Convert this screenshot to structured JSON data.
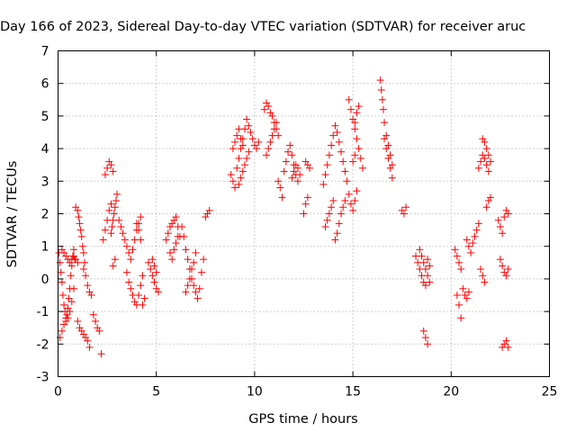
{
  "chart_data": {
    "type": "scatter",
    "title": "Day 166 of 2023, Sidereal Day-to-day VTEC variation (SDTVAR) for receiver aruc",
    "xlabel": "GPS time / hours",
    "ylabel": "SDTVAR / TECUs",
    "xlim": [
      0,
      25
    ],
    "ylim": [
      -3,
      7
    ],
    "xticks": [
      "0",
      "5",
      "10",
      "15",
      "20",
      "25"
    ],
    "yticks": [
      "-3",
      "-2",
      "-1",
      "0",
      "1",
      "2",
      "3",
      "4",
      "5",
      "6",
      "7"
    ],
    "grid": true,
    "marker": "+",
    "color": "#ff0000",
    "series": [
      {
        "name": "SDTVAR",
        "x": [
          0.05,
          0.1,
          0.15,
          0.2,
          0.25,
          0.3,
          0.35,
          0.4,
          0.45,
          0.5,
          0.55,
          0.6,
          0.65,
          0.7,
          0.75,
          0.8,
          0.85,
          0.1,
          0.2,
          0.3,
          0.4,
          0.5,
          0.6,
          0.7,
          0.8,
          0.2,
          0.3,
          0.4,
          0.5,
          0.6,
          0.7,
          0.8,
          0.9,
          1.0,
          0.9,
          1.0,
          1.05,
          1.1,
          1.15,
          1.2,
          1.25,
          1.3,
          1.35,
          1.0,
          1.1,
          1.2,
          1.3,
          1.4,
          1.5,
          1.6,
          1.3,
          1.4,
          1.5,
          1.6,
          1.7,
          1.8,
          1.9,
          2.0,
          2.1,
          2.2,
          2.3,
          2.4,
          2.5,
          2.6,
          2.7,
          2.8,
          2.9,
          2.4,
          2.5,
          2.6,
          2.7,
          2.8,
          2.7,
          2.75,
          2.8,
          2.85,
          2.9,
          2.95,
          3.0,
          3.1,
          3.2,
          3.3,
          3.4,
          3.5,
          3.6,
          3.7,
          3.8,
          3.9,
          4.0,
          4.1,
          4.2,
          3.5,
          3.6,
          3.7,
          3.8,
          3.9,
          4.0,
          4.1,
          4.2,
          4.3,
          4.0,
          4.1,
          4.2,
          4.3,
          4.4,
          4.6,
          4.7,
          4.8,
          4.9,
          5.0,
          5.1,
          4.8,
          4.9,
          5.0,
          5.5,
          5.6,
          5.7,
          5.8,
          5.9,
          6.0,
          6.1,
          6.2,
          5.7,
          5.8,
          5.9,
          6.0,
          6.1,
          6.3,
          6.4,
          6.5,
          6.6,
          6.7,
          6.8,
          6.9,
          7.0,
          7.1,
          7.2,
          7.3,
          7.4,
          6.5,
          6.6,
          6.7,
          6.8,
          6.9,
          7.0,
          7.5,
          7.6,
          7.7,
          8.8,
          8.9,
          9.0,
          9.1,
          9.2,
          9.3,
          9.4,
          9.5,
          9.6,
          9.7,
          9.8,
          9.9,
          10.0,
          10.1,
          10.2,
          8.9,
          9.0,
          9.1,
          9.2,
          9.3,
          9.4,
          9.2,
          9.3,
          9.4,
          9.5,
          9.6,
          9.7,
          10.5,
          10.6,
          10.7,
          10.8,
          10.9,
          11.0,
          11.1,
          11.2,
          10.6,
          10.7,
          10.8,
          10.9,
          11.0,
          11.1,
          11.2,
          11.3,
          11.4,
          11.5,
          11.6,
          11.7,
          11.8,
          11.9,
          12.0,
          12.1,
          12.2,
          11.9,
          12.0,
          12.1,
          12.2,
          12.3,
          12.6,
          12.7,
          12.8,
          12.5,
          12.6,
          12.7,
          13.5,
          13.6,
          13.7,
          13.8,
          13.9,
          14.0,
          14.1,
          14.2,
          14.3,
          14.4,
          14.5,
          14.6,
          14.7,
          13.6,
          13.7,
          13.8,
          13.9,
          14.0,
          14.1,
          14.2,
          14.3,
          14.4,
          14.5,
          14.6,
          14.8,
          14.9,
          15.0,
          15.1,
          15.2,
          15.3,
          15.4,
          15.5,
          14.8,
          14.9,
          15.0,
          15.1,
          15.2,
          15.1,
          15.2,
          15.3,
          15.0,
          15.1,
          16.4,
          16.45,
          16.5,
          16.55,
          16.6,
          16.7,
          16.8,
          16.9,
          17.0,
          16.6,
          16.7,
          16.8,
          16.9,
          17.0,
          17.5,
          17.6,
          17.7,
          18.2,
          18.3,
          18.4,
          18.5,
          18.6,
          18.7,
          18.8,
          18.9,
          18.4,
          18.5,
          18.6,
          18.7,
          18.8,
          18.9,
          18.6,
          18.7,
          18.8,
          20.2,
          20.3,
          20.4,
          20.5,
          20.3,
          20.4,
          20.5,
          20.6,
          20.7,
          20.8,
          20.9,
          20.8,
          20.9,
          21.0,
          21.1,
          21.2,
          21.3,
          21.4,
          21.4,
          21.5,
          21.6,
          21.7,
          21.8,
          21.9,
          21.6,
          21.7,
          21.8,
          21.9,
          22.0,
          21.5,
          21.6,
          21.7,
          21.8,
          21.9,
          22.0,
          22.4,
          22.5,
          22.6,
          22.7,
          22.8,
          22.9,
          22.5,
          22.6,
          22.7,
          22.8,
          22.9,
          22.6,
          22.7,
          22.8,
          22.9
        ],
        "y": [
          0.8,
          0.5,
          0.2,
          -0.1,
          -0.5,
          -0.8,
          -1.0,
          -1.2,
          -1.1,
          -0.9,
          -0.6,
          -0.3,
          0.1,
          0.4,
          0.7,
          0.9,
          0.6,
          -1.8,
          -1.6,
          -1.4,
          -1.3,
          -1.2,
          -1.0,
          -0.7,
          -0.3,
          0.9,
          0.8,
          0.7,
          0.6,
          0.5,
          0.6,
          0.7,
          0.6,
          0.5,
          2.2,
          2.1,
          1.9,
          1.7,
          1.5,
          1.3,
          1.0,
          0.8,
          0.5,
          -1.3,
          -1.5,
          -1.6,
          -1.7,
          -1.8,
          -1.9,
          -2.1,
          0.3,
          0.1,
          -0.2,
          -0.4,
          -0.5,
          -1.1,
          -1.3,
          -1.5,
          -1.6,
          -2.3,
          1.2,
          1.5,
          1.8,
          2.1,
          2.3,
          0.4,
          0.6,
          3.2,
          3.4,
          3.6,
          3.5,
          3.3,
          1.4,
          1.6,
          1.8,
          2.0,
          2.2,
          2.4,
          2.6,
          1.8,
          1.6,
          1.4,
          1.2,
          1.0,
          0.8,
          0.6,
          0.9,
          1.2,
          1.5,
          1.7,
          1.9,
          0.2,
          -0.1,
          -0.3,
          -0.5,
          -0.7,
          -0.8,
          -0.5,
          -0.2,
          0.1,
          1.7,
          1.5,
          1.2,
          -0.8,
          -0.6,
          0.5,
          0.3,
          0.1,
          -0.1,
          -0.3,
          -0.4,
          0.6,
          0.4,
          0.2,
          1.2,
          1.4,
          1.6,
          1.7,
          1.8,
          1.9,
          1.6,
          1.3,
          0.8,
          0.6,
          0.9,
          1.1,
          1.3,
          1.6,
          1.3,
          0.9,
          0.6,
          0.3,
          0.0,
          -0.2,
          -0.4,
          -0.6,
          -0.3,
          0.2,
          0.6,
          -0.4,
          -0.2,
          0.0,
          0.3,
          0.5,
          0.8,
          1.9,
          2.0,
          2.1,
          3.2,
          3.0,
          2.8,
          3.4,
          3.7,
          4.0,
          4.3,
          4.6,
          4.9,
          4.7,
          4.5,
          4.3,
          4.1,
          4.0,
          4.2,
          4.0,
          4.2,
          4.4,
          4.6,
          4.3,
          4.1,
          2.9,
          3.1,
          3.3,
          3.5,
          3.7,
          3.9,
          5.2,
          5.4,
          5.3,
          5.1,
          5.0,
          4.8,
          4.6,
          4.4,
          3.8,
          4.0,
          4.2,
          4.4,
          4.6,
          4.8,
          3.0,
          2.8,
          2.5,
          3.3,
          3.6,
          3.9,
          4.1,
          3.8,
          3.5,
          3.2,
          3.0,
          3.1,
          3.3,
          3.5,
          3.4,
          3.2,
          3.6,
          3.5,
          3.4,
          2.0,
          2.3,
          2.5,
          2.9,
          3.2,
          3.5,
          3.8,
          4.1,
          4.4,
          4.7,
          4.5,
          4.2,
          3.9,
          3.6,
          3.3,
          3.0,
          1.6,
          1.8,
          2.0,
          2.2,
          2.4,
          1.2,
          1.4,
          1.7,
          2.0,
          2.2,
          2.4,
          5.5,
          5.2,
          4.9,
          4.6,
          4.3,
          4.0,
          3.7,
          3.4,
          2.6,
          2.3,
          2.1,
          2.4,
          2.7,
          4.8,
          5.1,
          5.3,
          3.6,
          3.8,
          6.1,
          5.8,
          5.5,
          5.2,
          4.8,
          4.4,
          4.1,
          3.8,
          3.5,
          4.3,
          4.0,
          3.7,
          3.4,
          3.1,
          2.1,
          2.0,
          2.2,
          0.7,
          0.5,
          0.3,
          0.1,
          -0.1,
          -0.2,
          0.6,
          0.4,
          0.9,
          0.7,
          0.5,
          0.3,
          0.1,
          -0.1,
          -1.6,
          -1.8,
          -2.0,
          0.9,
          0.7,
          0.5,
          0.3,
          -0.5,
          -0.8,
          -1.2,
          -0.3,
          -0.5,
          -0.6,
          -0.4,
          1.2,
          1.0,
          0.8,
          1.1,
          1.3,
          1.5,
          1.7,
          3.4,
          3.6,
          3.8,
          3.7,
          3.5,
          3.3,
          4.3,
          4.2,
          4.0,
          3.8,
          3.6,
          0.3,
          0.1,
          -0.1,
          2.2,
          2.4,
          2.5,
          1.8,
          1.6,
          1.4,
          1.9,
          2.1,
          2.0,
          0.6,
          0.4,
          0.2,
          0.1,
          0.3,
          -2.1,
          -2.0,
          -1.9,
          -2.1
        ]
      }
    ]
  }
}
